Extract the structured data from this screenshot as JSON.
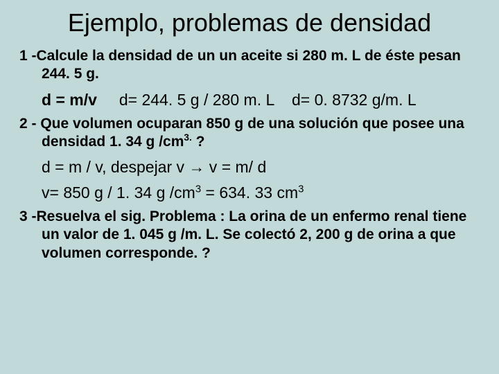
{
  "background_color": "#c1d9d9",
  "text_color": "#000000",
  "font_family": "Arial",
  "title": {
    "text": "Ejemplo, problemas de densidad",
    "fontsize": 36,
    "weight": "normal"
  },
  "problems": [
    {
      "prompt": "1 -Calcule la densidad de un un aceite si 280 m. L de éste pesan 244. 5 g.",
      "prompt_fontsize": 21,
      "solution_lines": [
        {
          "formula": "d = m/v",
          "calc": "d= 244. 5 g / 280 m. L",
          "result": "d= 0. 8732 g/m. L"
        }
      ],
      "solution_fontsize": 23
    },
    {
      "prompt": "2 -  Que volumen ocuparan 850 g de una solución  que posee una densidad 1. 34 g /cm3. ?",
      "prompt_fontsize": 21,
      "solution_lines": [
        {
          "line1": "d = m / v, despejar  v → v =  m/ d"
        },
        {
          "line2": "v=  850 g  / 1. 34 g /cm3 = 634. 33 cm3"
        }
      ],
      "solution_fontsize": 23
    },
    {
      "prompt": "3 -Resuelva el sig. Problema : La orina de un  enfermo renal tiene un valor de 1. 045 g /m. L.  Se colectó 2, 200 g de orina a que volumen corresponde. ?",
      "prompt_fontsize": 21,
      "solution_lines": []
    }
  ]
}
